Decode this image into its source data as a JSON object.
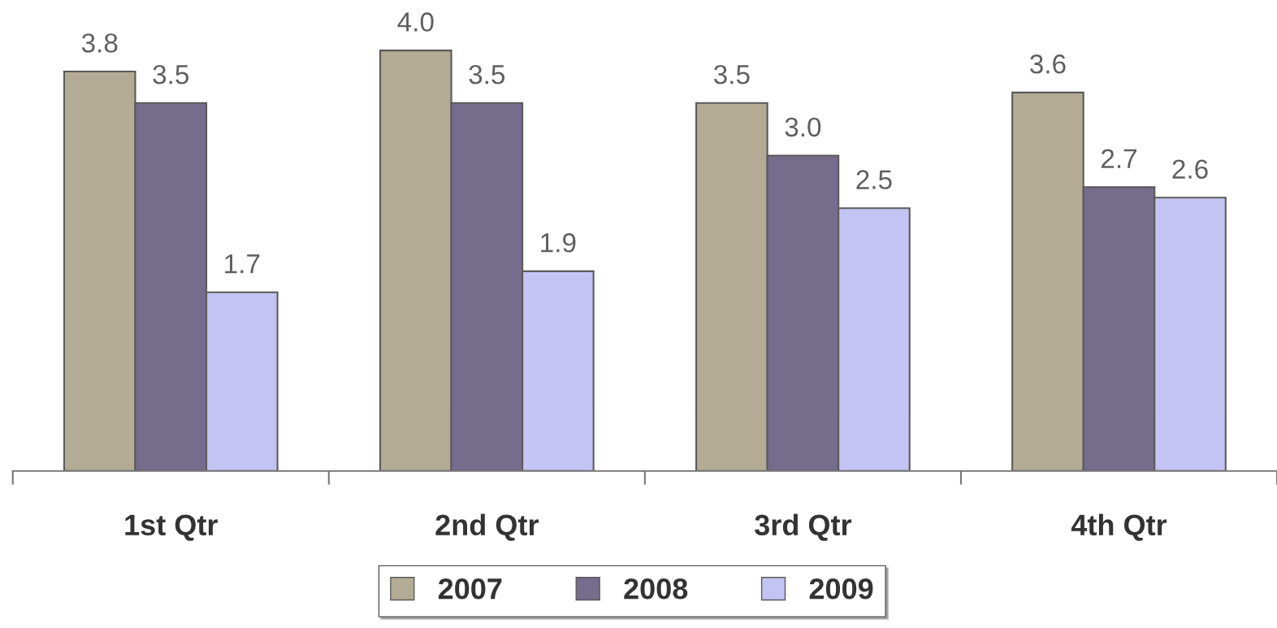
{
  "chart_data": {
    "type": "bar",
    "categories": [
      "1st Qtr",
      "2nd Qtr",
      "3rd Qtr",
      "4th Qtr"
    ],
    "series": [
      {
        "name": "2007",
        "color": "#b3ab94",
        "values": [
          3.8,
          4.0,
          3.5,
          3.6
        ],
        "value_labels": [
          "3.8",
          "4.0",
          "3.5",
          "3.6"
        ]
      },
      {
        "name": "2008",
        "color": "#766c8c",
        "values": [
          3.5,
          3.5,
          3.0,
          2.7
        ],
        "value_labels": [
          "3.5",
          "3.5",
          "3.0",
          "2.7"
        ]
      },
      {
        "name": "2009",
        "color": "#c4c4f4",
        "values": [
          1.7,
          1.9,
          2.5,
          2.6
        ],
        "value_labels": [
          "1.7",
          "1.9",
          "2.5",
          "2.6"
        ]
      }
    ],
    "legend": "bottom",
    "grid": false,
    "tick_labels": "x"
  }
}
